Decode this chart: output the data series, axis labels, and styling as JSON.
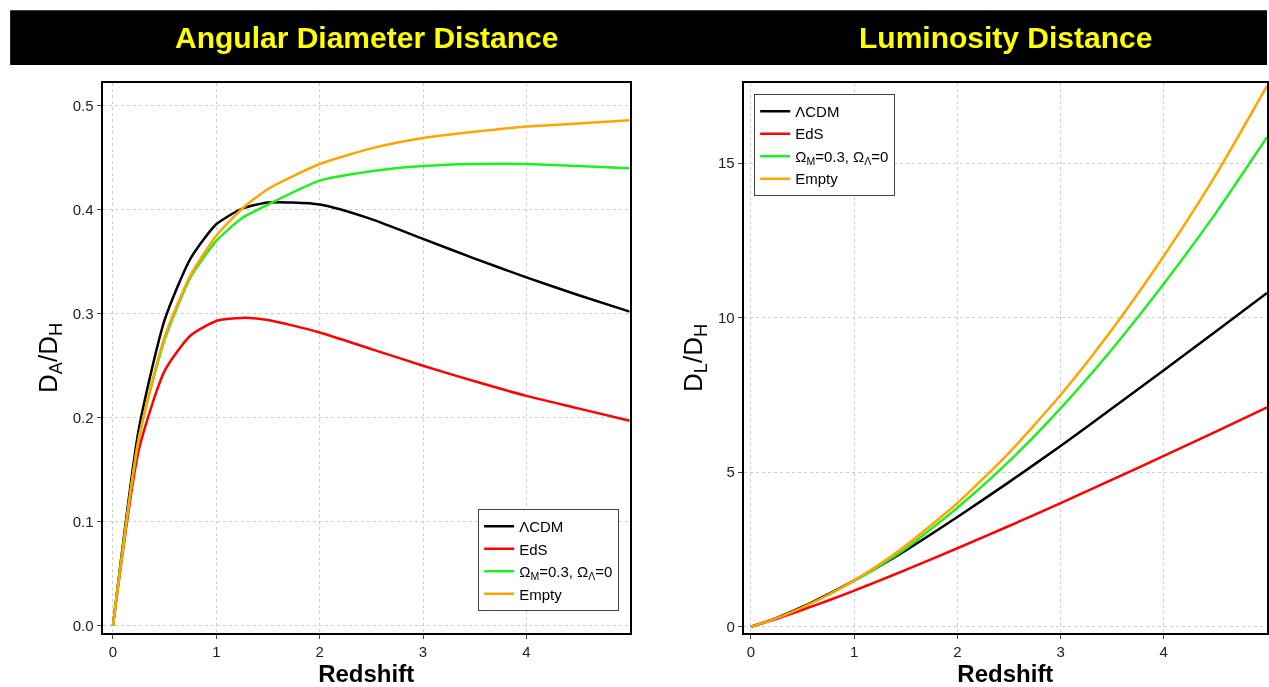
{
  "chart_data": [
    {
      "type": "line",
      "title": "Angular Diameter Distance",
      "xlabel": "Redshift",
      "ylabel": "D$_{A}$/D$_{H}$",
      "x": [
        0,
        0.25,
        0.5,
        0.75,
        1,
        1.25,
        1.5,
        2,
        2.5,
        3,
        3.5,
        4,
        4.5,
        5
      ],
      "xlim": [
        -0.1,
        5
      ],
      "xticks": [
        0,
        1,
        2,
        3,
        4
      ],
      "ylim": [
        -0.007,
        0.522
      ],
      "yticks": [
        {
          "value": 0,
          "label": "0.0"
        },
        0.1,
        0.2,
        0.3,
        0.4,
        0.5
      ],
      "grid": true,
      "legend": "bottom right",
      "marker": "none",
      "line_style": "solid",
      "series": [
        {
          "name": "ΛCDM",
          "color": "#000000",
          "values": [
            0,
            0.189,
            0.294,
            0.353,
            0.386,
            0.401,
            0.407,
            0.405,
            0.391,
            0.372,
            0.353,
            0.335,
            0.318,
            0.302
          ]
        },
        {
          "name": "EdS",
          "color": "#ff0000",
          "values": [
            0,
            0.169,
            0.245,
            0.279,
            0.293,
            0.296,
            0.294,
            0.282,
            0.266,
            0.25,
            0.235,
            0.221,
            0.209,
            0.197
          ]
        },
        {
          "name": "Ω$_{M}$=0.3, Ω$_{Λ}$=0",
          "color": "#22ee22",
          "values": [
            0,
            0.18,
            0.275,
            0.335,
            0.37,
            0.392,
            0.405,
            0.428,
            0.437,
            0.442,
            0.444,
            0.444,
            0.442,
            0.44
          ]
        },
        {
          "name": "Empty",
          "color": "#ffa500",
          "values": [
            0,
            0.18,
            0.278,
            0.337,
            0.375,
            0.401,
            0.42,
            0.444,
            0.459,
            0.469,
            0.475,
            0.48,
            0.483,
            0.486
          ]
        }
      ]
    },
    {
      "type": "line",
      "title": "Luminosity Distance",
      "xlabel": "Redshift",
      "ylabel": "D$_{L}$/D$_{H}$",
      "x": [
        0,
        0.25,
        0.5,
        0.75,
        1,
        1.25,
        1.5,
        2,
        2.5,
        3,
        3.5,
        4,
        4.5,
        5
      ],
      "xlim": [
        -0.07,
        5
      ],
      "xticks": [
        0,
        1,
        2,
        3,
        4
      ],
      "ylim": [
        -0.2,
        17.6
      ],
      "yticks": [
        0,
        5,
        10,
        15
      ],
      "grid": true,
      "legend": "top left",
      "marker": "none",
      "line_style": "solid",
      "series": [
        {
          "name": "ΛCDM",
          "color": "#000000",
          "values": [
            0,
            0.29,
            0.65,
            1.06,
            1.5,
            1.97,
            2.47,
            3.55,
            4.68,
            5.85,
            7.07,
            8.3,
            9.55,
            10.8
          ]
        },
        {
          "name": "EdS",
          "color": "#ff0000",
          "values": [
            0,
            0.26,
            0.55,
            0.85,
            1.17,
            1.5,
            1.84,
            2.54,
            3.26,
            4.0,
            4.76,
            5.53,
            6.31,
            7.1
          ]
        },
        {
          "name": "Ω$_{M}$=0.3, Ω$_{Λ}$=0",
          "color": "#22ee22",
          "values": [
            null,
            null,
            null,
            1.03,
            1.48,
            1.98,
            2.53,
            3.85,
            5.35,
            7.07,
            8.99,
            11.1,
            13.37,
            15.84
          ]
        },
        {
          "name": "Empty",
          "color": "#ffa500",
          "values": [
            0,
            0.28,
            0.63,
            1.03,
            1.5,
            2.03,
            2.63,
            4.0,
            5.63,
            7.5,
            9.63,
            12.0,
            14.6,
            17.5
          ]
        }
      ]
    }
  ]
}
